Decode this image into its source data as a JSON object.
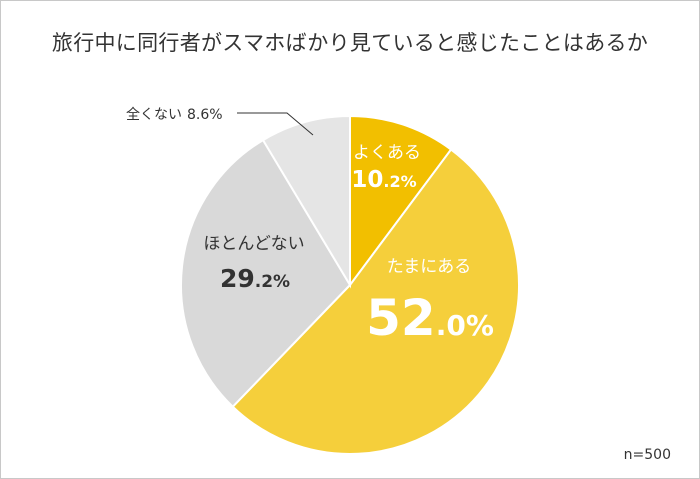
{
  "title": "旅行中に同行者がスマホばかり見ていると感じたことはあるか",
  "note": "n=500",
  "chart_data": {
    "type": "pie",
    "start_angle_deg": 0,
    "direction": "clockwise",
    "slices": [
      {
        "label": "よくある",
        "value": 10.2,
        "text": "10.2%",
        "main": "10",
        "dec": ".2%",
        "color": "#f2bf00"
      },
      {
        "label": "たまにある",
        "value": 52.0,
        "text": "52.0%",
        "main": "52",
        "dec": ".0%",
        "color": "#f5cf3b"
      },
      {
        "label": "ほとんどない",
        "value": 29.2,
        "text": "29.2%",
        "main": "29",
        "dec": ".2%",
        "color": "#d9d9d9"
      },
      {
        "label": "全くない",
        "value": 8.6,
        "text": "8.6%",
        "color": "#e5e5e5"
      }
    ]
  }
}
